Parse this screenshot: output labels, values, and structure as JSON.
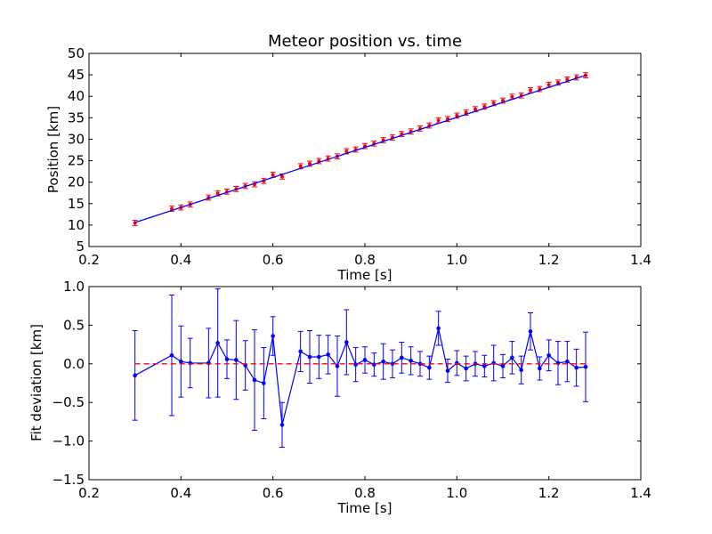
{
  "colors": {
    "fit_line": "#0000ff",
    "position_points": "#ff0000",
    "position_errorbars": "#ff0000",
    "residual_series": "#0000ff",
    "zero_line": "#ff0000"
  },
  "chart_data": [
    {
      "type": "line",
      "title": "Meteor position vs. time",
      "xlabel": "Time [s]",
      "ylabel": "Position [km]",
      "xlim": [
        0.2,
        1.4
      ],
      "ylim": [
        5,
        50
      ],
      "xticks": [
        "0.2",
        "0.4",
        "0.6",
        "0.8",
        "1.0",
        "1.2",
        "1.4"
      ],
      "yticks": [
        "5",
        "10",
        "15",
        "20",
        "25",
        "30",
        "35",
        "40",
        "45",
        "50"
      ],
      "grid": false,
      "series": [
        {
          "kind": "points-with-errorbars",
          "x": [
            0.3,
            0.38,
            0.4,
            0.42,
            0.46,
            0.48,
            0.5,
            0.52,
            0.54,
            0.56,
            0.58,
            0.6,
            0.62,
            0.66,
            0.68,
            0.7,
            0.72,
            0.74,
            0.76,
            0.78,
            0.8,
            0.82,
            0.84,
            0.86,
            0.88,
            0.9,
            0.92,
            0.94,
            0.96,
            0.98,
            1.0,
            1.02,
            1.04,
            1.06,
            1.08,
            1.1,
            1.12,
            1.14,
            1.16,
            1.18,
            1.2,
            1.22,
            1.24,
            1.26,
            1.28
          ],
          "y": [
            10.5,
            13.8,
            14.1,
            14.8,
            16.4,
            17.4,
            17.8,
            18.4,
            19.1,
            19.5,
            20.3,
            21.7,
            21.3,
            23.7,
            24.3,
            24.9,
            25.5,
            26.0,
            27.2,
            27.6,
            28.4,
            29.0,
            29.8,
            30.4,
            31.2,
            31.8,
            32.5,
            33.2,
            34.4,
            34.7,
            35.5,
            36.2,
            37.0,
            37.6,
            38.4,
            39.0,
            39.9,
            40.2,
            41.4,
            41.7,
            42.7,
            43.2,
            43.9,
            44.4,
            44.9
          ],
          "yerr": 0.6
        },
        {
          "kind": "fit-line",
          "x": [
            0.3,
            1.28
          ],
          "y": [
            10.6,
            44.9
          ]
        }
      ]
    },
    {
      "type": "line",
      "title": "",
      "xlabel": "Time [s]",
      "ylabel": "Fit deviation [km]",
      "xlim": [
        0.2,
        1.4
      ],
      "ylim": [
        -1.5,
        1.0
      ],
      "xticks": [
        "0.2",
        "0.4",
        "0.6",
        "0.8",
        "1.0",
        "1.2",
        "1.4"
      ],
      "yticks": [
        "−1.5",
        "−1.0",
        "−0.5",
        "0.0",
        "0.5",
        "1.0"
      ],
      "grid": false,
      "series": [
        {
          "kind": "residuals-with-errorbars",
          "x": [
            0.3,
            0.38,
            0.4,
            0.42,
            0.46,
            0.48,
            0.5,
            0.52,
            0.54,
            0.56,
            0.58,
            0.6,
            0.62,
            0.66,
            0.68,
            0.7,
            0.72,
            0.74,
            0.76,
            0.78,
            0.8,
            0.82,
            0.84,
            0.86,
            0.88,
            0.9,
            0.92,
            0.94,
            0.96,
            0.98,
            1.0,
            1.02,
            1.04,
            1.06,
            1.08,
            1.1,
            1.12,
            1.14,
            1.16,
            1.18,
            1.2,
            1.22,
            1.24,
            1.26,
            1.28
          ],
          "y": [
            -0.15,
            0.11,
            0.03,
            0.01,
            0.01,
            0.27,
            0.06,
            0.05,
            -0.02,
            -0.21,
            -0.25,
            0.36,
            -0.79,
            0.16,
            0.09,
            0.09,
            0.12,
            -0.03,
            0.28,
            -0.01,
            0.05,
            -0.01,
            0.03,
            0.0,
            0.08,
            0.04,
            0.0,
            -0.05,
            0.46,
            -0.09,
            0.01,
            -0.06,
            0.0,
            -0.03,
            0.01,
            -0.03,
            0.08,
            -0.08,
            0.42,
            -0.06,
            0.11,
            0.01,
            0.03,
            -0.05,
            -0.04
          ],
          "yerr": [
            0.58,
            0.78,
            0.46,
            0.32,
            0.45,
            0.7,
            0.25,
            0.51,
            0.32,
            0.65,
            0.46,
            0.25,
            0.29,
            0.26,
            0.34,
            0.28,
            0.25,
            0.39,
            0.42,
            0.22,
            0.17,
            0.15,
            0.23,
            0.18,
            0.2,
            0.18,
            0.16,
            0.15,
            0.22,
            0.15,
            0.16,
            0.16,
            0.16,
            0.14,
            0.23,
            0.15,
            0.21,
            0.18,
            0.24,
            0.15,
            0.2,
            0.28,
            0.26,
            0.24,
            0.45
          ]
        },
        {
          "kind": "zero-line",
          "x": [
            0.3,
            1.28
          ],
          "y": [
            0.0,
            0.0
          ]
        }
      ]
    }
  ]
}
